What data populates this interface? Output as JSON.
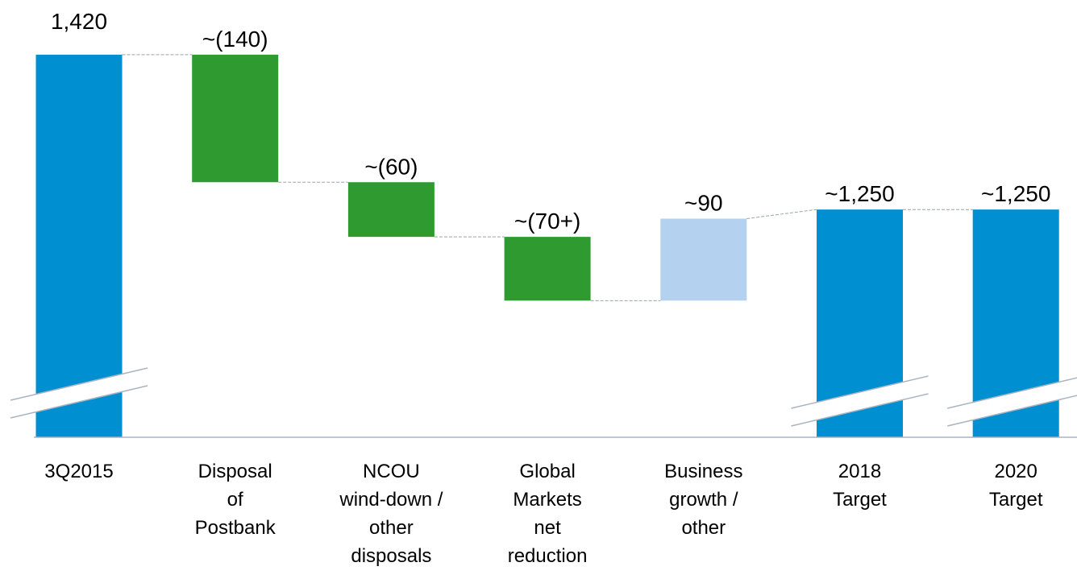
{
  "chart_data": {
    "type": "waterfall",
    "categories": [
      "3Q2015",
      "Disposal\nof\nPostbank",
      "NCOU\nwind-down /\nother\ndisposals",
      "Global\nMarkets\nnet\nreduction",
      "Business\ngrowth /\nother",
      "2018\nTarget",
      "2020\nTarget"
    ],
    "kinds": [
      "total",
      "delta",
      "delta",
      "delta",
      "delta",
      "total",
      "total"
    ],
    "values": [
      1420,
      -140,
      -60,
      -70,
      90,
      1250,
      1250
    ],
    "value_labels": [
      "1,420",
      "~(140)",
      "~(60)",
      "~(70+)",
      "~90",
      "~1,250",
      "~1,250"
    ],
    "colors": {
      "total": "#008fd0",
      "decrease": "#2e9a2f",
      "increase": "#b4d1ef"
    },
    "ylim": [
      1000,
      1480
    ],
    "axis_break": true
  }
}
